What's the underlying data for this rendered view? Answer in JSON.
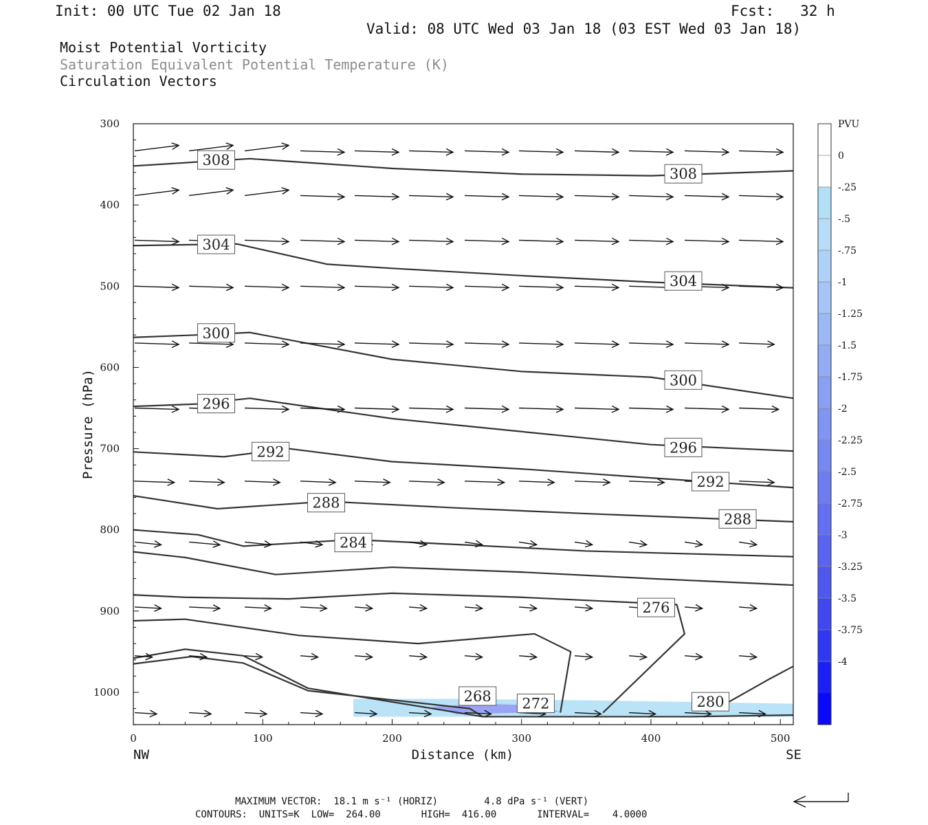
{
  "header": {
    "init": "Init: 00 UTC Tue 02 Jan 18",
    "fcst": "Fcst:   32 h",
    "valid": "Valid: 08 UTC Wed 03 Jan 18 (03 EST Wed 03 Jan 18)"
  },
  "legend_lines": [
    "Moist Potential Vorticity",
    "Saturation Equivalent Potential Temperature (K)",
    "Circulation Vectors"
  ],
  "footer": {
    "max_vector": "MAXIMUM VECTOR:  18.1 m s⁻¹ (HORIZ)        4.8 dPa s⁻¹ (VERT)",
    "contours": "CONTOURS:  UNITS=K  LOW=  264.00       HIGH=  416.00       INTERVAL=    4.0000"
  },
  "colors": {
    "contour": "#333333",
    "shade_light": "#b3e0f7",
    "shade_dark": "#8f8ff0"
  },
  "chart_data": {
    "type": "cross-section",
    "xlabel": "Distance (km)",
    "ylabel": "Pressure (hPa)",
    "xlim": [
      0,
      510
    ],
    "ylim": [
      300,
      1040
    ],
    "x_ticks": [
      "0",
      "100",
      "200",
      "300",
      "400",
      "500"
    ],
    "y_ticks": [
      "300",
      "400",
      "500",
      "600",
      "700",
      "800",
      "900",
      "1000"
    ],
    "x_end_labels": {
      "left": "NW",
      "right": "SE"
    },
    "grid": false,
    "colorbar": {
      "unit": "PVU",
      "ticks": [
        "0",
        "-.25",
        "-.5",
        "-.75",
        "-1",
        "-1.25",
        "-1.5",
        "-1.75",
        "-2",
        "-2.25",
        "-2.5",
        "-2.75",
        "-3",
        "-3.25",
        "-3.5",
        "-3.75",
        "-4"
      ],
      "colors": [
        "#ffffff",
        "#ffffff",
        "#b3e0f7",
        "#b8dcf8",
        "#afd0f7",
        "#a6c4f6",
        "#9cb8f5",
        "#93acf4",
        "#8aa0f3",
        "#8094f2",
        "#7788f1",
        "#6e7cf0",
        "#6470ef",
        "#5a64ee",
        "#4e58ed",
        "#4048ee",
        "#3038f0",
        "#1c20f4",
        "#0a0af8"
      ]
    },
    "contour_interval": 4,
    "contours": [
      {
        "label": "308",
        "label_at": [
          [
            64,
            345
          ],
          [
            425,
            362
          ]
        ],
        "points": [
          [
            0,
            352
          ],
          [
            50,
            347
          ],
          [
            90,
            343
          ],
          [
            200,
            355
          ],
          [
            300,
            362
          ],
          [
            400,
            364
          ],
          [
            510,
            358
          ]
        ]
      },
      {
        "label": "304",
        "label_at": [
          [
            64,
            449
          ],
          [
            425,
            494
          ]
        ],
        "points": [
          [
            0,
            450
          ],
          [
            80,
            448
          ],
          [
            150,
            473
          ],
          [
            200,
            478
          ],
          [
            300,
            487
          ],
          [
            400,
            495
          ],
          [
            510,
            502
          ]
        ]
      },
      {
        "label": "300",
        "label_at": [
          [
            64,
            558
          ],
          [
            425,
            616
          ]
        ],
        "points": [
          [
            0,
            563
          ],
          [
            50,
            560
          ],
          [
            90,
            557
          ],
          [
            200,
            590
          ],
          [
            300,
            605
          ],
          [
            400,
            612
          ],
          [
            510,
            638
          ]
        ]
      },
      {
        "label": "296",
        "label_at": [
          [
            64,
            645
          ],
          [
            425,
            699
          ]
        ],
        "points": [
          [
            0,
            648
          ],
          [
            50,
            645
          ],
          [
            90,
            638
          ],
          [
            200,
            663
          ],
          [
            300,
            679
          ],
          [
            400,
            695
          ],
          [
            510,
            703
          ]
        ]
      },
      {
        "label": "292",
        "label_at": [
          [
            106,
            704
          ],
          [
            446,
            741
          ]
        ],
        "points": [
          [
            0,
            704
          ],
          [
            70,
            710
          ],
          [
            120,
            700
          ],
          [
            200,
            716
          ],
          [
            300,
            725
          ],
          [
            400,
            736
          ],
          [
            510,
            748
          ]
        ]
      },
      {
        "label": "288",
        "label_at": [
          [
            149,
            767
          ],
          [
            467,
            787
          ]
        ],
        "points": [
          [
            0,
            758
          ],
          [
            65,
            774
          ],
          [
            150,
            765
          ],
          [
            250,
            773
          ],
          [
            350,
            780
          ],
          [
            510,
            790
          ]
        ]
      },
      {
        "label": "284",
        "label_at": [
          [
            170,
            816
          ]
        ],
        "points": [
          [
            0,
            800
          ],
          [
            50,
            806
          ],
          [
            85,
            820
          ],
          [
            170,
            812
          ],
          [
            250,
            818
          ],
          [
            350,
            826
          ],
          [
            510,
            833
          ]
        ]
      },
      {
        "label": "",
        "label_at": [],
        "points": [
          [
            0,
            827
          ],
          [
            40,
            834
          ],
          [
            110,
            855
          ],
          [
            200,
            846
          ],
          [
            300,
            852
          ],
          [
            400,
            860
          ],
          [
            510,
            868
          ]
        ]
      },
      {
        "label": "276",
        "label_at": [
          [
            404,
            896
          ]
        ],
        "points": [
          [
            0,
            880
          ],
          [
            40,
            883
          ],
          [
            120,
            885
          ],
          [
            200,
            878
          ],
          [
            300,
            883
          ],
          [
            420,
            892
          ],
          [
            426,
            928
          ],
          [
            363,
            1025
          ]
        ]
      },
      {
        "label": "",
        "label_at": [],
        "points": [
          [
            0,
            912
          ],
          [
            40,
            910
          ],
          [
            128,
            930
          ],
          [
            220,
            940
          ],
          [
            310,
            928
          ],
          [
            338,
            950
          ],
          [
            330,
            1025
          ]
        ]
      },
      {
        "label": "272",
        "label_at": [
          [
            311,
            1014
          ]
        ],
        "points": [
          [
            0,
            958
          ],
          [
            40,
            947
          ],
          [
            85,
            955
          ],
          [
            135,
            995
          ],
          [
            270,
            1030
          ],
          [
            430,
            1030
          ],
          [
            510,
            1028
          ]
        ]
      },
      {
        "label": "268",
        "label_at": [
          [
            266,
            1005
          ]
        ],
        "points": [
          [
            0,
            965
          ],
          [
            45,
            956
          ],
          [
            85,
            964
          ],
          [
            135,
            998
          ],
          [
            260,
            1020
          ],
          [
            270,
            1030
          ]
        ]
      },
      {
        "label": "280",
        "label_at": [
          [
            446,
            1012
          ]
        ],
        "points": [
          [
            460,
            1012
          ],
          [
            490,
            985
          ],
          [
            510,
            968
          ]
        ]
      }
    ],
    "shading": [
      {
        "level": "-.25",
        "points": [
          [
            170,
            1008
          ],
          [
            250,
            1008
          ],
          [
            360,
            1010
          ],
          [
            510,
            1014
          ],
          [
            510,
            1030
          ],
          [
            170,
            1030
          ]
        ]
      },
      {
        "level": "-1.5",
        "points": [
          [
            230,
            1018
          ],
          [
            270,
            1014
          ],
          [
            310,
            1016
          ],
          [
            330,
            1024
          ],
          [
            250,
            1027
          ]
        ]
      }
    ],
    "vectors": {
      "columns_x": [
        0,
        42,
        85,
        128,
        170,
        212,
        255,
        297,
        340,
        382,
        425,
        467
      ],
      "rows_p": [
        330,
        385,
        440,
        500,
        570,
        650,
        740,
        815,
        895,
        955,
        1025
      ],
      "u": [
        [
          1.0,
          1.0,
          1.0,
          1.0,
          1.0,
          1.0,
          1.0,
          1.0,
          1.0,
          1.0,
          1.0,
          1.0
        ],
        [
          1.0,
          1.0,
          1.0,
          1.0,
          1.0,
          1.0,
          1.0,
          1.0,
          1.0,
          1.0,
          1.0,
          1.0
        ],
        [
          1.0,
          1.0,
          1.0,
          1.0,
          1.0,
          1.0,
          1.0,
          1.0,
          1.0,
          1.0,
          1.0,
          1.0
        ],
        [
          1.0,
          1.0,
          1.0,
          1.0,
          1.0,
          1.0,
          1.0,
          1.0,
          1.0,
          1.0,
          1.0,
          1.0
        ],
        [
          1.0,
          1.0,
          1.0,
          1.0,
          1.0,
          1.0,
          1.0,
          1.0,
          1.0,
          1.0,
          1.0,
          0.8
        ],
        [
          1.0,
          1.0,
          1.0,
          1.0,
          1.0,
          1.0,
          1.0,
          1.0,
          1.0,
          1.0,
          1.0,
          0.9
        ],
        [
          0.9,
          0.8,
          0.8,
          0.8,
          0.8,
          0.8,
          0.9,
          0.8,
          0.8,
          0.8,
          0.8,
          0.8
        ],
        [
          0.6,
          0.7,
          0.6,
          0.5,
          0.4,
          0.4,
          0.4,
          0.4,
          0.4,
          0.4,
          0.4,
          0.4
        ],
        [
          0.6,
          0.7,
          0.6,
          0.6,
          0.4,
          0.4,
          0.4,
          0.4,
          0.4,
          0.4,
          0.4,
          0.4
        ],
        [
          0.4,
          0.4,
          0.4,
          0.4,
          0.4,
          0.4,
          0.4,
          0.4,
          0.4,
          0.4,
          0.4,
          0.4
        ],
        [
          0.5,
          0.5,
          0.5,
          0.5,
          0.5,
          0.5,
          0.6,
          0.6,
          0.6,
          0.6,
          0.6,
          0.6
        ]
      ]
    }
  }
}
